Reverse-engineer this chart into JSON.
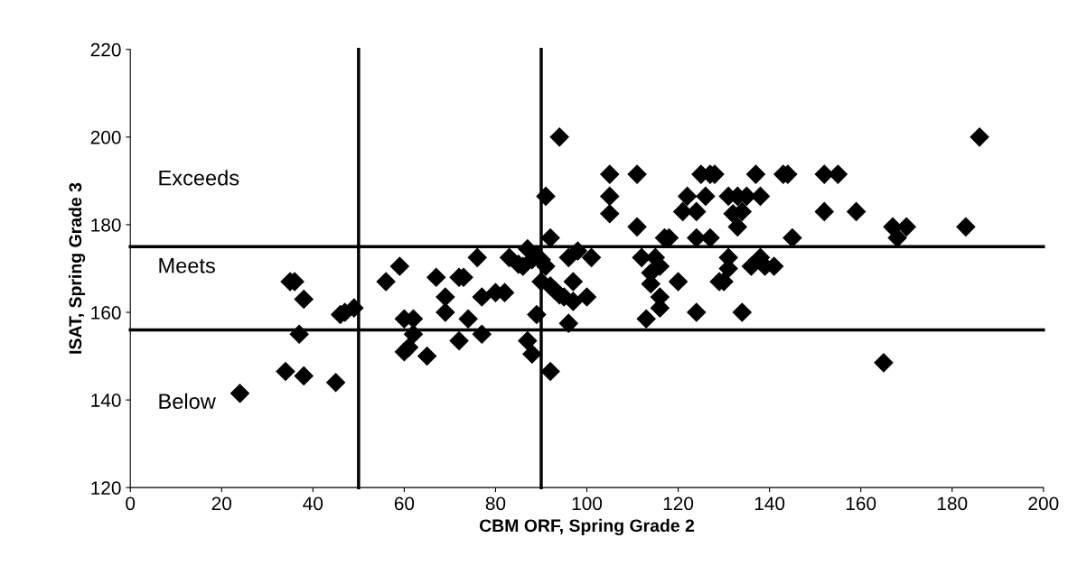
{
  "chart_data": {
    "type": "scatter",
    "xlabel": "CBM ORF, Spring Grade 2",
    "ylabel": "ISAT, Spring Grade 3",
    "x": [
      24,
      34,
      35,
      36,
      37,
      38,
      38,
      45,
      46,
      47,
      49,
      56,
      59,
      60,
      60,
      61,
      62,
      62,
      65,
      67,
      69,
      69,
      72,
      72,
      73,
      74,
      76,
      77,
      77,
      80,
      82,
      83,
      85,
      86,
      87,
      87,
      88,
      88,
      89,
      89,
      90,
      90,
      91,
      91,
      92,
      92,
      92,
      93,
      94,
      94,
      95,
      96,
      96,
      97,
      97,
      98,
      100,
      101,
      105,
      105,
      105,
      111,
      111,
      112,
      113,
      114,
      114,
      115,
      116,
      116,
      116,
      117,
      118,
      120,
      121,
      122,
      124,
      124,
      124,
      125,
      126,
      127,
      127,
      128,
      129,
      130,
      131,
      131,
      131,
      132,
      133,
      133,
      134,
      134,
      135,
      136,
      137,
      138,
      138,
      139,
      141,
      143,
      144,
      145,
      152,
      152,
      155,
      159,
      165,
      167,
      168,
      170,
      183,
      186
    ],
    "series": [
      {
        "color": "#000000",
        "values": [
          141.5,
          146.5,
          167,
          167,
          155,
          163,
          145.5,
          144,
          159.5,
          160,
          161,
          167,
          170.5,
          158.5,
          151,
          152,
          158.5,
          155,
          150,
          168,
          163.5,
          160,
          168,
          153.5,
          168,
          158.5,
          172.5,
          163.5,
          155,
          164.5,
          164.5,
          172.5,
          171,
          170.5,
          174.5,
          153.5,
          172,
          150.5,
          159.5,
          173,
          172,
          167,
          186.5,
          170.5,
          146.5,
          177,
          166,
          165,
          200,
          164,
          163.5,
          172.5,
          157.5,
          167,
          162.5,
          174,
          163.5,
          172.5,
          191.5,
          186.5,
          182.5,
          191.5,
          179.5,
          172.5,
          158.5,
          169,
          166.5,
          172.5,
          163.5,
          161,
          170.5,
          177,
          177,
          167,
          183,
          186.5,
          183,
          160,
          177,
          191.5,
          186.5,
          191.5,
          177,
          191.5,
          167,
          167,
          186.5,
          172.5,
          170,
          182.5,
          179.5,
          186.5,
          183,
          160,
          186.5,
          170.5,
          191.5,
          186.5,
          172.5,
          170.5,
          170.5,
          191.5,
          191.5,
          177,
          191.5,
          183,
          191.5,
          183,
          148.5,
          179.5,
          177,
          179.5,
          179.5,
          200
        ]
      }
    ],
    "xlim": [
      0,
      200
    ],
    "xticks": [
      0,
      20,
      40,
      60,
      80,
      100,
      120,
      140,
      160,
      180,
      200
    ],
    "ylim": [
      120,
      220
    ],
    "yticks": [
      120,
      140,
      160,
      180,
      200,
      220
    ],
    "marker": "diamond",
    "grid": false,
    "ref_lines": [
      {
        "axis": "x",
        "value": 50,
        "color": "#000000"
      },
      {
        "axis": "x",
        "value": 90,
        "color": "#000000"
      },
      {
        "axis": "y",
        "value": 175,
        "color": "#000000"
      },
      {
        "axis": "y",
        "value": 156,
        "color": "#000000"
      }
    ],
    "annotations": [
      "Exceeds",
      "Meets",
      "Below"
    ]
  }
}
